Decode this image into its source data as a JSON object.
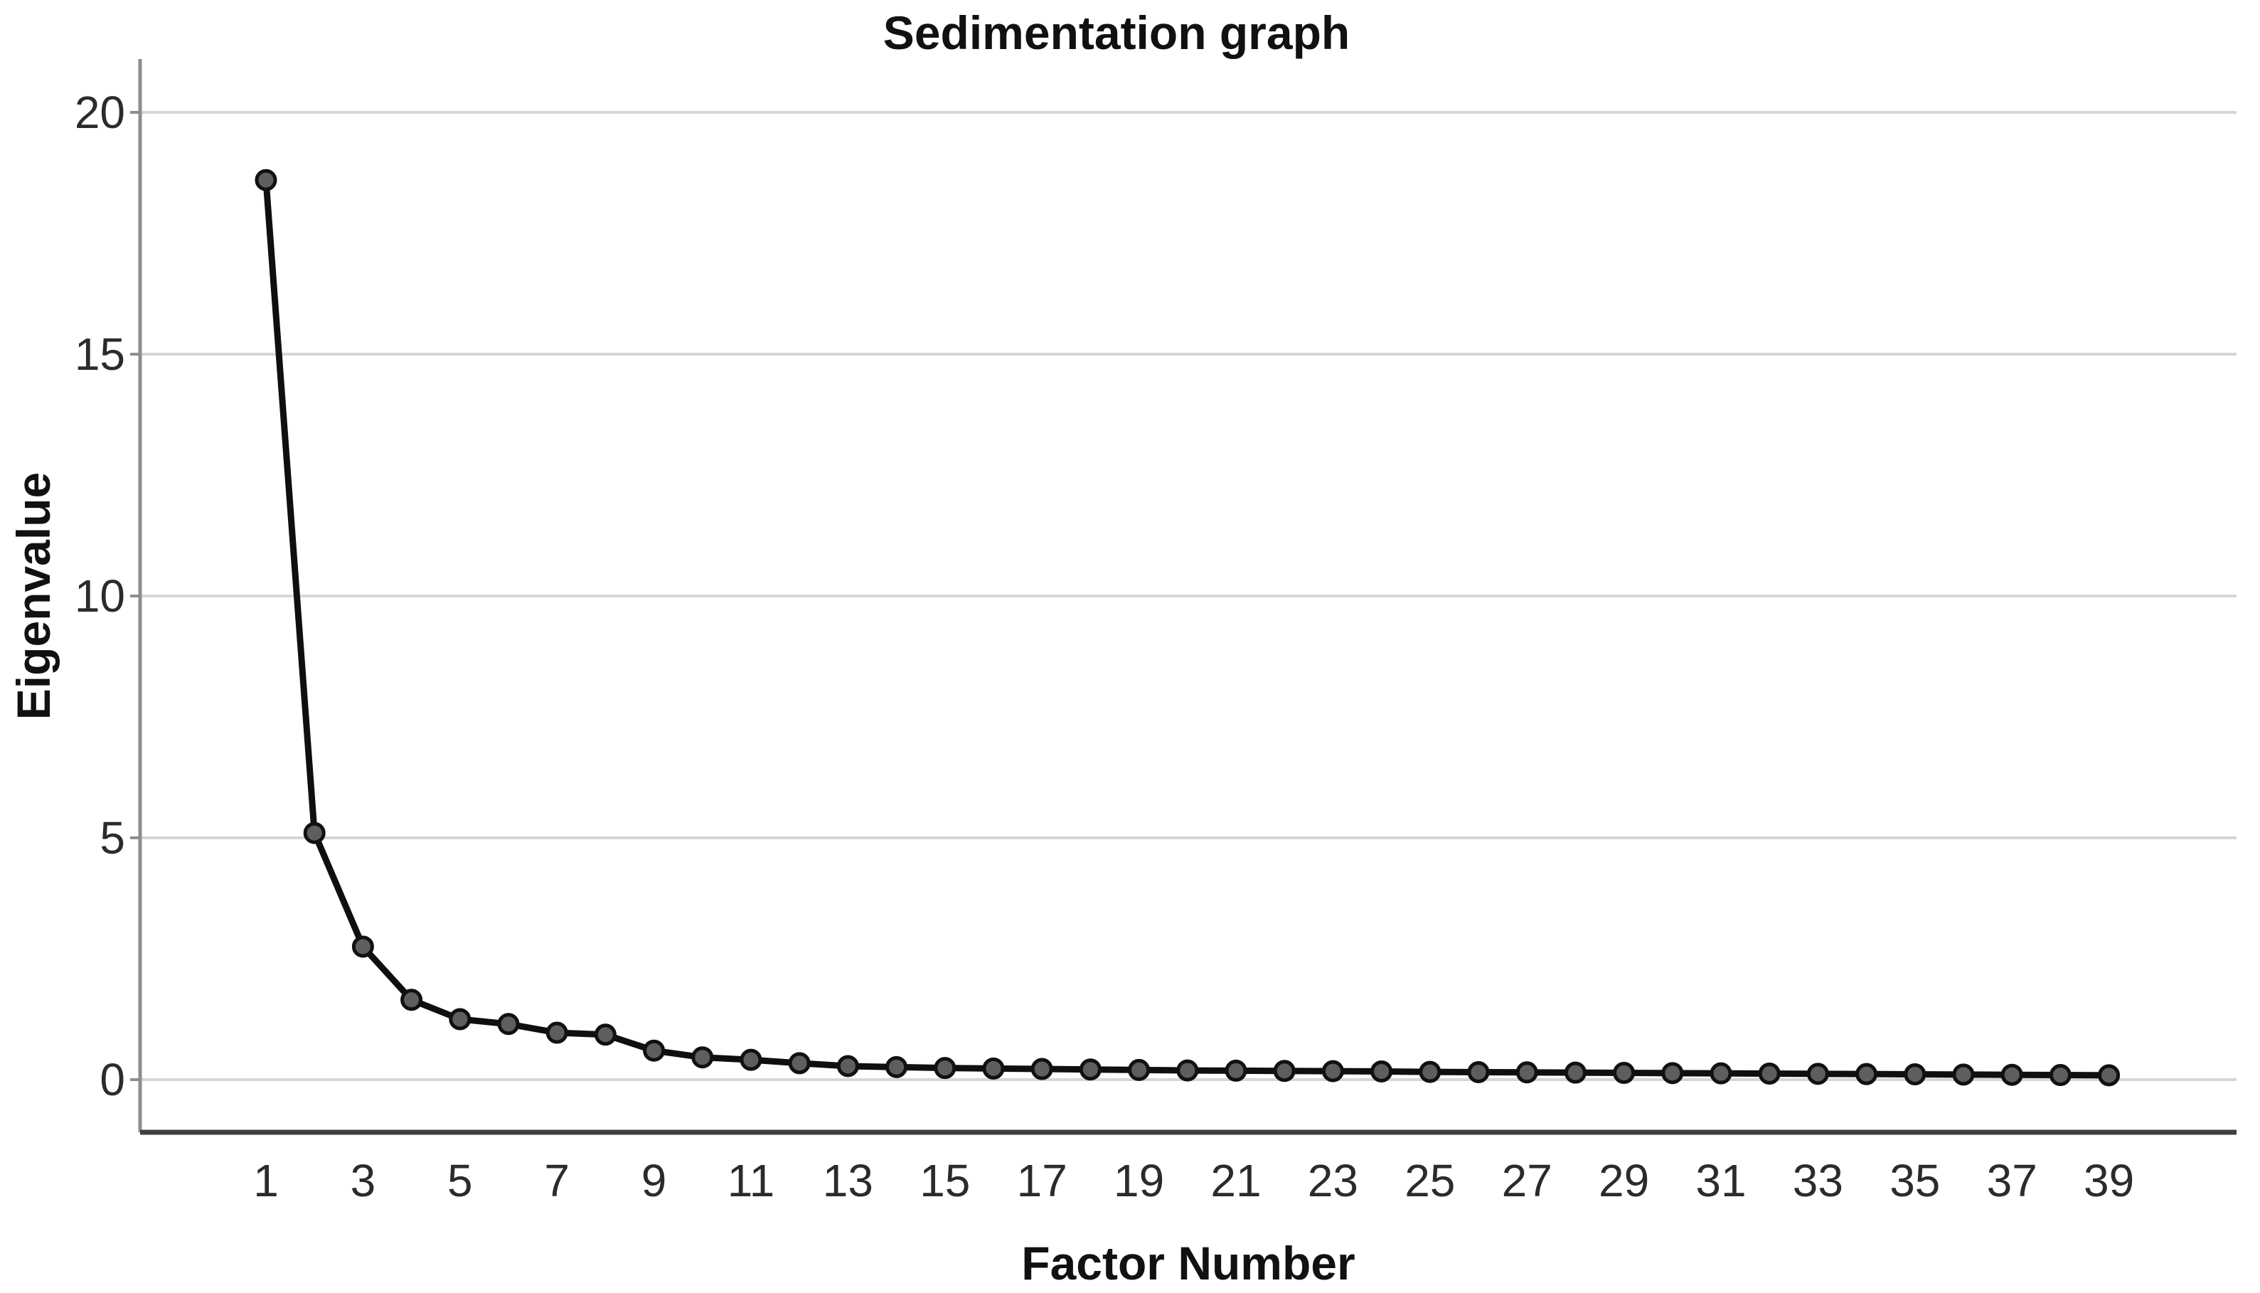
{
  "title": "Sedimentation graph",
  "chart_data": {
    "type": "line",
    "title": "Sedimentation graph",
    "xlabel": "Factor Number",
    "ylabel": "Eigenvalue",
    "x": [
      1,
      2,
      3,
      4,
      5,
      6,
      7,
      8,
      9,
      10,
      11,
      12,
      13,
      14,
      15,
      16,
      17,
      18,
      19,
      20,
      21,
      22,
      23,
      24,
      25,
      26,
      27,
      28,
      29,
      30,
      31,
      32,
      33,
      34,
      35,
      36,
      37,
      38,
      39
    ],
    "values": [
      18.6,
      5.1,
      2.75,
      1.65,
      1.25,
      1.15,
      0.97,
      0.93,
      0.6,
      0.46,
      0.41,
      0.34,
      0.28,
      0.26,
      0.24,
      0.23,
      0.22,
      0.21,
      0.2,
      0.19,
      0.185,
      0.18,
      0.175,
      0.17,
      0.16,
      0.155,
      0.15,
      0.145,
      0.14,
      0.135,
      0.13,
      0.125,
      0.12,
      0.115,
      0.11,
      0.105,
      0.1,
      0.095,
      0.09
    ],
    "x_tick_labels": [
      "1",
      "3",
      "5",
      "7",
      "9",
      "11",
      "13",
      "15",
      "17",
      "19",
      "21",
      "23",
      "25",
      "27",
      "29",
      "31",
      "33",
      "35",
      "37",
      "39"
    ],
    "x_tick_values": [
      1,
      3,
      5,
      7,
      9,
      11,
      13,
      15,
      17,
      19,
      21,
      23,
      25,
      27,
      29,
      31,
      33,
      35,
      37,
      39
    ],
    "y_ticks": [
      0,
      5,
      10,
      15,
      20
    ],
    "ylim": [
      -1.1,
      21.1
    ],
    "xlim": [
      -1.6,
      41.6
    ],
    "grid": "horizontal",
    "legend": "none",
    "series_name": "Eigenvalue",
    "colors": {
      "background": "#ffffff",
      "gridline": "#d6d6d6",
      "y_axis_line": "#8e8e8e",
      "x_axis_line": "#3f3f3f",
      "line": "#0f0f0f",
      "marker_fill": "#5e5e5e",
      "marker_stroke": "#111111",
      "tick_text": "#2b2b2b",
      "title_text": "#111111"
    }
  }
}
